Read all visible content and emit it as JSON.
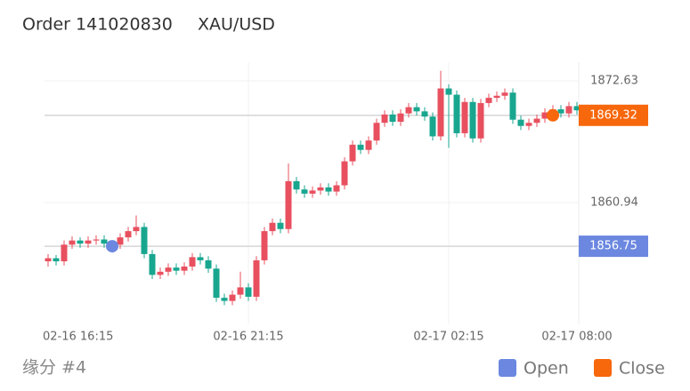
{
  "header": {
    "order": "Order 141020830",
    "symbol": "XAU/USD"
  },
  "chart_data": {
    "type": "candlestick",
    "categories": [
      "02-16 16:15",
      null,
      null,
      null,
      null,
      null,
      null,
      null,
      null,
      null,
      null,
      null,
      null,
      null,
      null,
      null,
      null,
      null,
      null,
      null,
      null,
      null,
      null,
      null,
      null,
      "02-16 21:15",
      null,
      null,
      null,
      null,
      null,
      null,
      null,
      null,
      null,
      null,
      null,
      null,
      null,
      null,
      null,
      null,
      null,
      null,
      null,
      null,
      null,
      null,
      null,
      null,
      "02-17 02:15",
      null,
      null,
      null,
      null,
      null,
      null,
      null,
      null,
      null,
      null,
      null,
      null,
      null,
      null,
      null,
      "02-17 08:00"
    ],
    "series": [
      {
        "up_color": "#e8505f",
        "down_color": "#18a68f",
        "open": [
          1855.3,
          1855.6,
          1855.3,
          1856.9,
          1857.3,
          1857.0,
          1857.3,
          1857.4,
          1857.0,
          1856.9,
          1857.6,
          1858.2,
          1858.6,
          1856.0,
          1854.0,
          1854.3,
          1854.7,
          1854.4,
          1854.8,
          1855.7,
          1855.4,
          1854.6,
          1851.8,
          1851.5,
          1852.1,
          1852.8,
          1851.9,
          1855.4,
          1858.2,
          1859.0,
          1858.4,
          1863.0,
          1862.2,
          1861.8,
          1862.1,
          1862.4,
          1862.0,
          1862.6,
          1864.9,
          1866.5,
          1866.0,
          1866.9,
          1868.6,
          1869.4,
          1868.7,
          1869.5,
          1870.1,
          1869.7,
          1869.2,
          1867.3,
          1871.9,
          1871.3,
          1867.6,
          1870.6,
          1867.1,
          1870.5,
          1871.0,
          1871.2,
          1871.5,
          1868.9,
          1868.3,
          1868.6,
          1869.0,
          1869.6,
          1869.9,
          1869.5,
          1870.2
        ],
        "high": [
          1856.0,
          1855.9,
          1857.3,
          1857.7,
          1857.6,
          1857.7,
          1857.8,
          1857.8,
          1857.3,
          1858.0,
          1858.6,
          1859.7,
          1859.0,
          1856.4,
          1854.7,
          1855.1,
          1855.1,
          1855.2,
          1856.1,
          1856.1,
          1855.8,
          1855.0,
          1852.2,
          1852.5,
          1854.3,
          1853.2,
          1855.8,
          1858.6,
          1859.4,
          1859.4,
          1864.7,
          1863.4,
          1862.6,
          1862.5,
          1862.8,
          1862.8,
          1863.0,
          1865.3,
          1866.9,
          1866.9,
          1867.3,
          1869.0,
          1869.8,
          1869.8,
          1869.9,
          1870.5,
          1870.5,
          1870.1,
          1869.6,
          1873.6,
          1872.3,
          1871.7,
          1871.0,
          1871.0,
          1870.9,
          1871.4,
          1871.6,
          1871.9,
          1871.9,
          1869.3,
          1869.0,
          1869.4,
          1870.0,
          1870.3,
          1870.3,
          1870.6,
          1870.6
        ],
        "low": [
          1854.8,
          1854.9,
          1854.9,
          1856.5,
          1856.6,
          1856.6,
          1856.9,
          1856.6,
          1856.5,
          1856.5,
          1857.2,
          1857.8,
          1855.6,
          1853.6,
          1853.6,
          1853.9,
          1854.0,
          1854.0,
          1854.4,
          1855.0,
          1854.2,
          1851.4,
          1851.1,
          1851.1,
          1851.7,
          1851.5,
          1851.5,
          1855.0,
          1857.8,
          1858.0,
          1858.0,
          1861.8,
          1861.4,
          1861.4,
          1861.7,
          1861.6,
          1861.6,
          1862.2,
          1864.5,
          1865.6,
          1865.6,
          1866.5,
          1868.2,
          1868.3,
          1868.3,
          1869.1,
          1869.3,
          1868.8,
          1866.9,
          1866.9,
          1866.2,
          1867.2,
          1867.2,
          1866.7,
          1866.7,
          1870.1,
          1870.6,
          1870.8,
          1868.5,
          1867.9,
          1867.9,
          1868.2,
          1868.6,
          1869.2,
          1869.1,
          1869.1,
          1869.4
        ],
        "close": [
          1855.6,
          1855.3,
          1856.9,
          1857.3,
          1857.0,
          1857.3,
          1857.4,
          1857.0,
          1856.9,
          1857.6,
          1858.2,
          1858.6,
          1856.0,
          1854.0,
          1854.3,
          1854.7,
          1854.4,
          1854.8,
          1855.7,
          1855.4,
          1854.6,
          1851.8,
          1851.5,
          1852.1,
          1852.8,
          1851.9,
          1855.4,
          1858.2,
          1859.0,
          1858.4,
          1863.0,
          1862.2,
          1861.8,
          1862.1,
          1862.4,
          1862.0,
          1862.6,
          1864.9,
          1866.5,
          1866.0,
          1866.9,
          1868.6,
          1869.4,
          1868.7,
          1869.5,
          1870.1,
          1869.7,
          1869.2,
          1867.3,
          1871.9,
          1871.3,
          1867.6,
          1870.6,
          1867.1,
          1870.5,
          1871.0,
          1871.2,
          1871.5,
          1868.9,
          1868.3,
          1868.6,
          1869.0,
          1869.6,
          1869.9,
          1869.5,
          1870.2,
          1869.8
        ]
      }
    ],
    "ylim": [
      1849.25,
      1874.42
    ],
    "yticks": [
      1872.63,
      1860.94
    ],
    "grid": true,
    "markers": [
      {
        "name": "Open",
        "color": "#6b87e0",
        "index": 8,
        "value": 1856.75
      },
      {
        "name": "Close",
        "color": "#f7670c",
        "index": 63,
        "value": 1869.32
      }
    ]
  },
  "footer": "缘分 #4"
}
